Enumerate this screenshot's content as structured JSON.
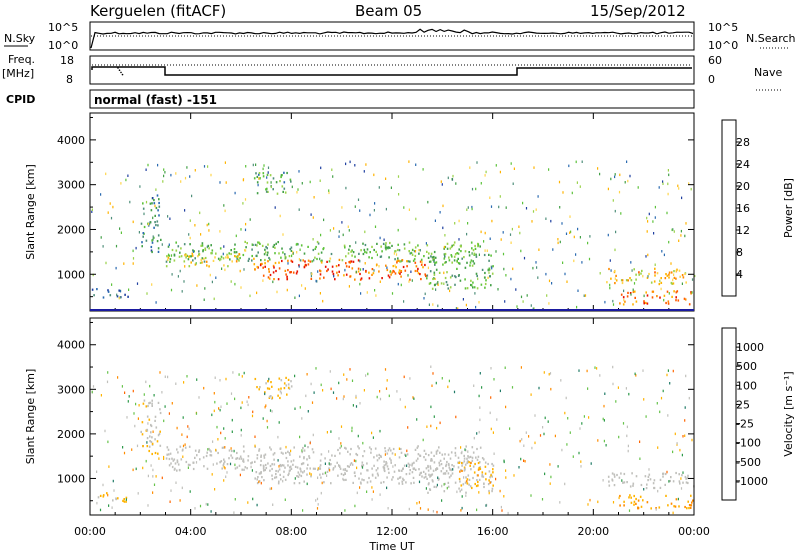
{
  "header": {
    "station": "Kerguelen (fitACF)",
    "beam": "Beam 05",
    "date": "15/Sep/2012"
  },
  "top_panels": {
    "nsky_label": "N.Sky",
    "nsky_ticks": [
      "10^5",
      "10^0"
    ],
    "nsearch_label": "N.Search",
    "nsearch_ticks": [
      "10^5",
      "10^0"
    ],
    "freq_label_line1": "Freq.",
    "freq_label_line2": "[MHz]",
    "freq_ticks": [
      "18",
      "8"
    ],
    "nave_label": "Nave",
    "nave_ticks": [
      "60",
      "0"
    ],
    "cpid_label": "CPID",
    "cpid_value": "normal (fast) -151"
  },
  "chart_data": [
    {
      "type": "heatmap",
      "title": "",
      "ylabel": "Slant Range [km]",
      "xlabel": "",
      "x_ticks": [
        "00:00",
        "04:00",
        "08:00",
        "12:00",
        "16:00",
        "20:00",
        "00:00"
      ],
      "xlim_hours": [
        0,
        24
      ],
      "ylim_km": [
        180,
        4600
      ],
      "y_ticks": [
        1000,
        2000,
        3000,
        4000
      ],
      "colorbar": {
        "label": "Power [dB]",
        "ticks": [
          "28",
          "24",
          "20",
          "16",
          "12",
          "8",
          "4"
        ],
        "range": [
          0,
          32
        ],
        "colors": [
          "#0000e8",
          "#1f3fa0",
          "#2a6ab0",
          "#4f8f7a",
          "#43a047",
          "#5cc23a",
          "#9ad24a",
          "#ffd54a",
          "#ffb300",
          "#ff8c00",
          "#ff5a00",
          "#e81000"
        ]
      },
      "blobs": [
        {
          "t0": 3.0,
          "t1": 15.5,
          "r0": 1300,
          "r1": 1750,
          "level": 14
        },
        {
          "t0": 6.5,
          "t1": 13.5,
          "r0": 900,
          "r1": 1350,
          "level": 28
        },
        {
          "t0": 3.0,
          "t1": 6.5,
          "r0": 1200,
          "r1": 1500,
          "level": 20
        },
        {
          "t0": 13.3,
          "t1": 16.0,
          "r0": 700,
          "r1": 1500,
          "level": 14
        },
        {
          "t0": 2.0,
          "t1": 2.8,
          "r0": 1500,
          "r1": 2800,
          "level": 10
        },
        {
          "t0": 20.5,
          "t1": 24.0,
          "r0": 800,
          "r1": 1150,
          "level": 22
        },
        {
          "t0": 21.0,
          "t1": 24.0,
          "r0": 350,
          "r1": 650,
          "level": 26
        },
        {
          "t0": 0.0,
          "t1": 1.5,
          "r0": 500,
          "r1": 700,
          "level": 8
        },
        {
          "t0": 6.5,
          "t1": 8.0,
          "r0": 2800,
          "r1": 3300,
          "level": 12
        }
      ]
    },
    {
      "type": "heatmap",
      "title": "",
      "ylabel": "Slant Range [km]",
      "xlabel": "Time UT",
      "x_ticks": [
        "00:00",
        "04:00",
        "08:00",
        "12:00",
        "16:00",
        "20:00",
        "00:00"
      ],
      "xlim_hours": [
        0,
        24
      ],
      "ylim_km": [
        180,
        4600
      ],
      "y_ticks": [
        1000,
        2000,
        3000,
        4000
      ],
      "colorbar": {
        "label": "Velocity [m s⁻¹]",
        "ticks": [
          "1000",
          "500",
          "100",
          "25",
          "-25",
          "-100",
          "-500",
          "-1000"
        ],
        "range": [
          -1200,
          1200
        ],
        "colors": [
          "#ff0000",
          "#ff3300",
          "#ff6600",
          "#ff8c00",
          "#ffb300",
          "#c0c0bc",
          "#c0c0bc",
          "#66c34a",
          "#2e9a4a",
          "#1f7a66",
          "#2a5ab0",
          "#1e1ea8"
        ]
      },
      "blobs": [
        {
          "t0": 3.0,
          "t1": 15.5,
          "r0": 1200,
          "r1": 1750,
          "level": 0
        },
        {
          "t0": 6.5,
          "t1": 13.5,
          "r0": 900,
          "r1": 1350,
          "level": 0
        },
        {
          "t0": 13.3,
          "t1": 16.0,
          "r0": 700,
          "r1": 1500,
          "level": 0
        },
        {
          "t0": 14.6,
          "t1": 16.0,
          "r0": 800,
          "r1": 1400,
          "level": -300
        },
        {
          "t0": 2.0,
          "t1": 2.8,
          "r0": 1500,
          "r1": 2800,
          "level": -150
        },
        {
          "t0": 20.5,
          "t1": 24.0,
          "r0": 800,
          "r1": 1150,
          "level": 0
        },
        {
          "t0": 21.0,
          "t1": 24.0,
          "r0": 350,
          "r1": 650,
          "level": -400
        },
        {
          "t0": 0.0,
          "t1": 1.5,
          "r0": 500,
          "r1": 700,
          "level": -200
        },
        {
          "t0": 6.5,
          "t1": 8.0,
          "r0": 2800,
          "r1": 3300,
          "level": -250
        }
      ]
    }
  ]
}
